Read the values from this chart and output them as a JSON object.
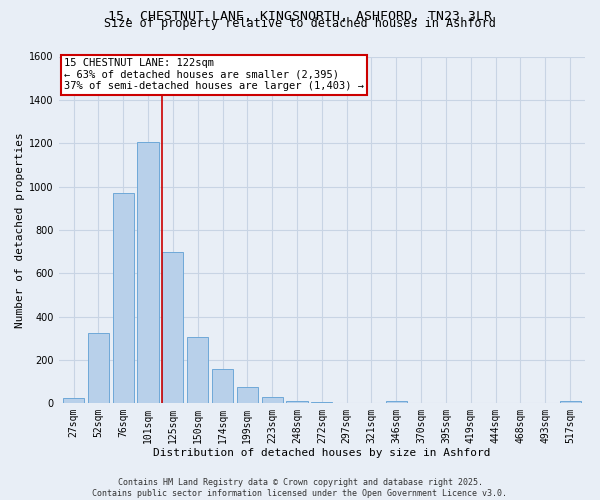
{
  "title_line1": "15, CHESTNUT LANE, KINGSNORTH, ASHFORD, TN23 3LR",
  "title_line2": "Size of property relative to detached houses in Ashford",
  "xlabel": "Distribution of detached houses by size in Ashford",
  "ylabel": "Number of detached properties",
  "bar_labels": [
    "27sqm",
    "52sqm",
    "76sqm",
    "101sqm",
    "125sqm",
    "150sqm",
    "174sqm",
    "199sqm",
    "223sqm",
    "248sqm",
    "272sqm",
    "297sqm",
    "321sqm",
    "346sqm",
    "370sqm",
    "395sqm",
    "419sqm",
    "444sqm",
    "468sqm",
    "493sqm",
    "517sqm"
  ],
  "bar_values": [
    25,
    325,
    970,
    1205,
    700,
    305,
    160,
    75,
    30,
    10,
    5,
    0,
    0,
    10,
    0,
    0,
    0,
    0,
    0,
    0,
    10
  ],
  "bar_color": "#b8d0ea",
  "bar_edge_color": "#6ea8d8",
  "grid_color": "#c8d4e4",
  "background_color": "#e8eef6",
  "vline_color": "#cc0000",
  "vline_pos": 3.58,
  "annotation_text": "15 CHESTNUT LANE: 122sqm\n← 63% of detached houses are smaller (2,395)\n37% of semi-detached houses are larger (1,403) →",
  "annotation_box_color": "#ffffff",
  "annotation_box_edge": "#cc0000",
  "ylim": [
    0,
    1600
  ],
  "yticks": [
    0,
    200,
    400,
    600,
    800,
    1000,
    1200,
    1400,
    1600
  ],
  "footer_text": "Contains HM Land Registry data © Crown copyright and database right 2025.\nContains public sector information licensed under the Open Government Licence v3.0.",
  "title_fontsize": 9.5,
  "subtitle_fontsize": 8.5,
  "axis_label_fontsize": 8,
  "tick_fontsize": 7,
  "annotation_fontsize": 7.5,
  "footer_fontsize": 6
}
